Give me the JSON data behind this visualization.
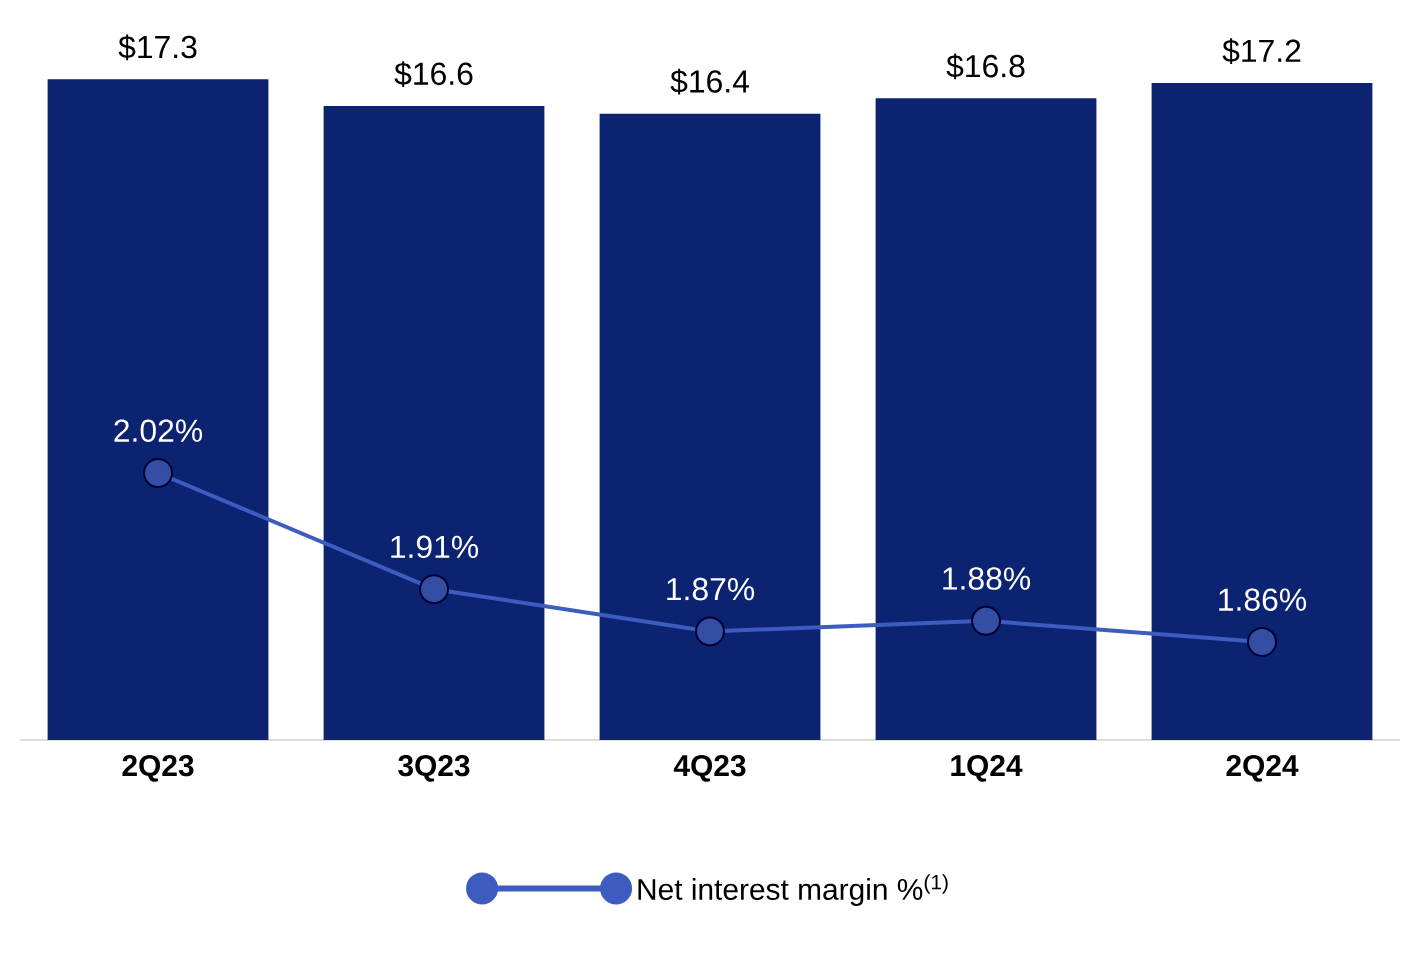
{
  "chart_data": {
    "type": "bar",
    "categories": [
      "2Q23",
      "3Q23",
      "4Q23",
      "1Q24",
      "2Q24"
    ],
    "series": [
      {
        "color": "#0b2370",
        "values": [
          17.3,
          16.6,
          16.4,
          16.8,
          17.2
        ],
        "value_labels": [
          "$17.3",
          "$16.6",
          "$16.4",
          "$16.8",
          "$17.2"
        ]
      },
      {
        "type": "line",
        "name": "Net interest margin %$^{(1)}$",
        "axis": "y2",
        "color": "#3d5cc0",
        "marker": "circle",
        "values": [
          2.02,
          1.91,
          1.87,
          1.88,
          1.86
        ],
        "value_labels": [
          "2.02%",
          "1.91%",
          "1.87%",
          "1.88%",
          "1.86%"
        ]
      }
    ],
    "legend": "bottom",
    "tick_labels": "x"
  }
}
